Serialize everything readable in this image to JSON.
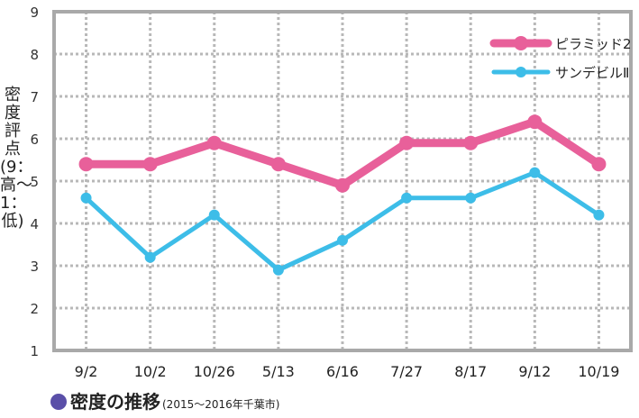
{
  "chart_data": {
    "type": "line",
    "categories": [
      "9/2",
      "10/2",
      "10/26",
      "5/13",
      "6/16",
      "7/27",
      "8/17",
      "9/12",
      "10/19"
    ],
    "series": [
      {
        "name": "ピラミッド2",
        "values": [
          5.4,
          5.4,
          5.9,
          5.4,
          4.9,
          5.9,
          5.9,
          6.4,
          5.4
        ],
        "color": "#e8609a"
      },
      {
        "name": "サンデビルⅡ",
        "values": [
          4.6,
          3.2,
          4.2,
          2.9,
          3.6,
          4.6,
          4.6,
          5.2,
          4.2
        ],
        "color": "#3dbde8"
      }
    ],
    "ylim": [
      1,
      9
    ],
    "yticks": [
      "1",
      "2",
      "3",
      "4",
      "5",
      "6",
      "7",
      "8",
      "9"
    ],
    "ylabel": "密度評点(9：高〜1：低)",
    "grid": true,
    "legend_position": "top-right"
  },
  "caption": {
    "title": "密度の推移",
    "subtitle": "(2015〜2016年千葉市)",
    "marker_color": "#5a4fa8"
  }
}
